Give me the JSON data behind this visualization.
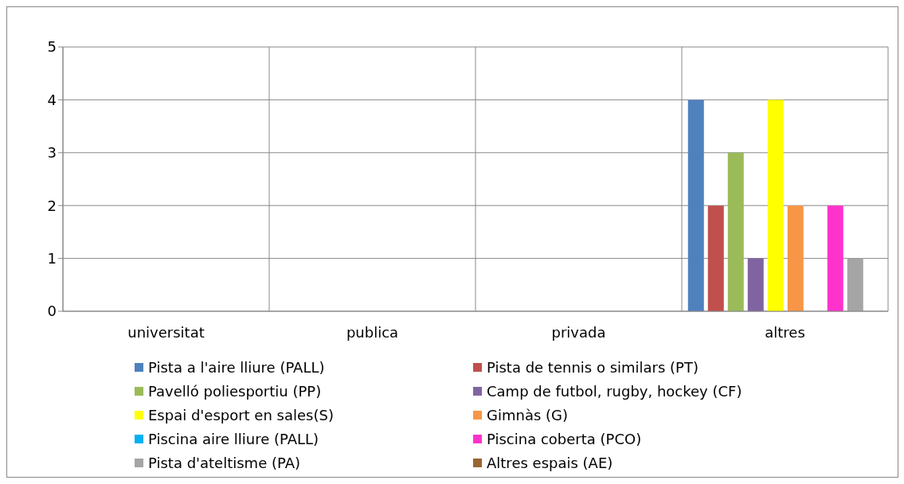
{
  "chart_data": {
    "type": "bar",
    "categories": [
      "universitat",
      "publica",
      "privada",
      "altres"
    ],
    "series": [
      {
        "name": "Pista a l'aire lliure (PALL)",
        "color": "#4f81bd",
        "values": [
          0,
          0,
          0,
          4
        ]
      },
      {
        "name": "Pista de tennis o similars (PT)",
        "color": "#c0504d",
        "values": [
          0,
          0,
          0,
          2
        ]
      },
      {
        "name": "Pavelló poliesportiu (PP)",
        "color": "#9bbb59",
        "values": [
          0,
          0,
          0,
          3
        ]
      },
      {
        "name": "Camp de futbol, rugby, hockey (CF)",
        "color": "#8064a2",
        "values": [
          0,
          0,
          0,
          1
        ]
      },
      {
        "name": "Espai d'esport en sales(S)",
        "color": "#ffff00",
        "values": [
          0,
          0,
          0,
          4
        ]
      },
      {
        "name": "Gimnàs (G)",
        "color": "#f79646",
        "values": [
          0,
          0,
          0,
          2
        ]
      },
      {
        "name": "Piscina aire lliure (PALL)",
        "color": "#00b0f0",
        "values": [
          0,
          0,
          0,
          0
        ]
      },
      {
        "name": "Piscina coberta (PCO)",
        "color": "#ff33cc",
        "values": [
          0,
          0,
          0,
          2
        ]
      },
      {
        "name": "Pista d'ateltisme (PA)",
        "color": "#a5a5a5",
        "values": [
          0,
          0,
          0,
          1
        ]
      },
      {
        "name": "Altres espais (AE)",
        "color": "#996633",
        "values": [
          0,
          0,
          0,
          0
        ]
      }
    ],
    "ylim": [
      0,
      5
    ],
    "yticks": [
      0,
      1,
      2,
      3,
      4,
      5
    ],
    "grid": true,
    "legend": "bottom"
  }
}
